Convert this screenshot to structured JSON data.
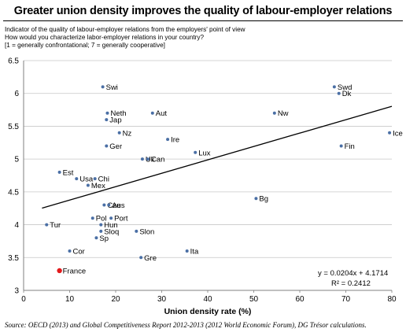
{
  "header": {
    "title": "Greater union density improves the quality of labour-employer relations",
    "subtitle_lines": [
      "Indicator of the quality of labour-employer relations from the employers' point of view",
      "How would you characterize labor-employer relations in your country?",
      "[1 = generally confrontational; 7 = generally cooperative]"
    ]
  },
  "chart_data": {
    "type": "scatter",
    "title": "Greater union density improves the quality of labour-employer relations",
    "xlabel": "Union density rate (%)",
    "ylabel": "",
    "xlim": [
      0,
      80
    ],
    "ylim": [
      3,
      6.5
    ],
    "x_ticks": [
      0,
      10,
      20,
      30,
      40,
      50,
      60,
      70,
      80
    ],
    "y_ticks": [
      3,
      3.5,
      4,
      4.5,
      5,
      5.5,
      6,
      6.5
    ],
    "x_tick_labels": [
      "0",
      "10",
      "20",
      "30",
      "40",
      "50",
      "60",
      "70",
      "80"
    ],
    "y_tick_labels": [
      "3",
      "3.5",
      "4",
      "4.5",
      "5",
      "5.5",
      "6",
      "6.5"
    ],
    "grid": "horizontal",
    "point_color": "#4a6fa5",
    "highlight_color": "#e31a1c",
    "points": [
      {
        "label": "Swi",
        "x": 17.2,
        "y": 6.1
      },
      {
        "label": "Swd",
        "x": 67.5,
        "y": 6.1
      },
      {
        "label": "Dk",
        "x": 68.5,
        "y": 6.0
      },
      {
        "label": "Neth",
        "x": 18.2,
        "y": 5.7
      },
      {
        "label": "Aut",
        "x": 28.0,
        "y": 5.7
      },
      {
        "label": "Nw",
        "x": 54.5,
        "y": 5.7
      },
      {
        "label": "Jap",
        "x": 18.0,
        "y": 5.6
      },
      {
        "label": "Nz",
        "x": 20.8,
        "y": 5.4
      },
      {
        "label": "Ice",
        "x": 79.5,
        "y": 5.4
      },
      {
        "label": "Ire",
        "x": 31.3,
        "y": 5.3
      },
      {
        "label": "Ger",
        "x": 18.0,
        "y": 5.2
      },
      {
        "label": "Fin",
        "x": 69.0,
        "y": 5.2
      },
      {
        "label": "Lux",
        "x": 37.3,
        "y": 5.1
      },
      {
        "label": "Uk",
        "x": 25.8,
        "y": 5.0
      },
      {
        "label": "Can",
        "x": 27.0,
        "y": 5.0
      },
      {
        "label": "Est",
        "x": 7.8,
        "y": 4.8
      },
      {
        "label": "Usa",
        "x": 11.5,
        "y": 4.7
      },
      {
        "label": "Chi",
        "x": 15.5,
        "y": 4.7
      },
      {
        "label": "Mex",
        "x": 14.0,
        "y": 4.6
      },
      {
        "label": "Bg",
        "x": 50.5,
        "y": 4.4
      },
      {
        "label": "Cze",
        "x": 17.5,
        "y": 4.3
      },
      {
        "label": "Aus",
        "x": 18.5,
        "y": 4.3
      },
      {
        "label": "Pol",
        "x": 15.0,
        "y": 4.1
      },
      {
        "label": "Port",
        "x": 19.0,
        "y": 4.1
      },
      {
        "label": "Tur",
        "x": 5.0,
        "y": 4.0
      },
      {
        "label": "Hun",
        "x": 16.8,
        "y": 4.0
      },
      {
        "label": "Sloq",
        "x": 16.8,
        "y": 3.9
      },
      {
        "label": "Slon",
        "x": 24.5,
        "y": 3.9
      },
      {
        "label": "Sp",
        "x": 15.8,
        "y": 3.8
      },
      {
        "label": "Cor",
        "x": 10.0,
        "y": 3.6
      },
      {
        "label": "Ita",
        "x": 35.5,
        "y": 3.6
      },
      {
        "label": "Gre",
        "x": 25.5,
        "y": 3.5
      },
      {
        "label": "France",
        "x": 7.8,
        "y": 3.3,
        "highlight": true
      }
    ],
    "trendline": {
      "slope": 0.0204,
      "intercept": 4.1714,
      "x_start": 4,
      "x_end": 80,
      "equation_label": "y = 0.0204x + 4.1714",
      "r2_label": "R² = 0.2412"
    }
  },
  "footer": {
    "source": "Source: OECD (2013) and Global Competitiveness Report 2012-2013 (2012 World Economic Forum), DG Trésor calculations."
  }
}
